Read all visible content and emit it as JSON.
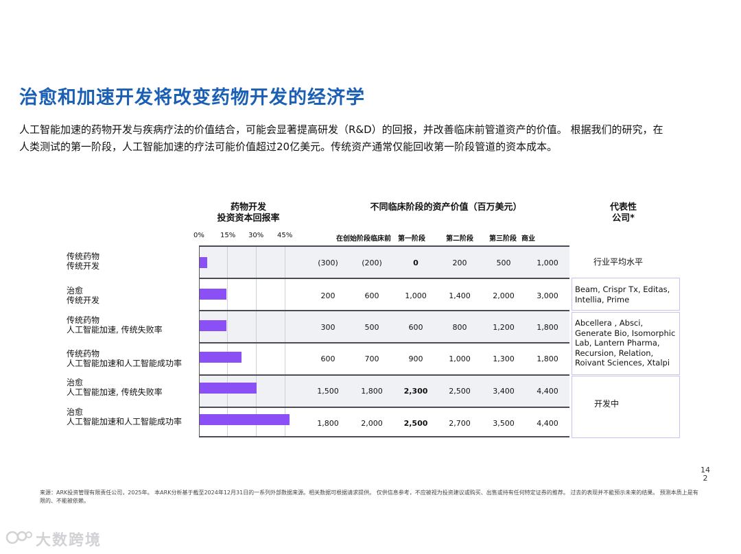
{
  "title": "治愈和加速开发将改变药物开发的经济学",
  "intro": "人工智能加速的药物开发与疾病疗法的价值结合，可能会显著提高研发（R&D）的回报，并改善临床前管道资产的价值。 根据我们的研究，在人类测试的第一阶段，人工智能加速的疗法可能价值超过20亿美元。传统资产通常仅能回收第一阶段管道的资本成本。",
  "table": {
    "col_irr_line1": "药物开发",
    "col_irr_line2": "投资资本回报率",
    "col_value": "不同临床阶段的资产价值（百万美元）",
    "col_company_line1": "代表性",
    "col_company_line2": "公司*",
    "irr_ticks": [
      "0%",
      "15%",
      "30%",
      "45%"
    ],
    "stage_headers": [
      "在创始阶段",
      "临床前",
      "第一阶段",
      "第二阶段",
      "第三阶段",
      "商业"
    ],
    "rows": [
      {
        "label1": "传统药物",
        "label2": "传统开发",
        "irr": 4,
        "values": [
          "(300)",
          "(200)",
          "0",
          "200",
          "500",
          "1,000"
        ]
      },
      {
        "label1": "治愈",
        "label2": "传统开发",
        "irr": 14,
        "values": [
          "200",
          "600",
          "1,000",
          "1,400",
          "2,000",
          "3,000"
        ]
      },
      {
        "label1": "传统药物",
        "label2": "人工智能加速, 传统失败率",
        "irr": 14,
        "values": [
          "300",
          "500",
          "600",
          "800",
          "1,200",
          "1,800"
        ]
      },
      {
        "label1": "传统药物",
        "label2": "人工智能加速和人工智能成功率",
        "irr": 22,
        "values": [
          "600",
          "700",
          "900",
          "1,000",
          "1,300",
          "1,800"
        ]
      },
      {
        "label1": "治愈",
        "label2": "人工智能加速, 传统失败率",
        "irr": 30,
        "values": [
          "1,500",
          "1,800",
          "2,300",
          "2,500",
          "3,400",
          "4,400"
        ]
      },
      {
        "label1": "治愈",
        "label2": "人工智能加速和人工智能成功率",
        "irr": 47,
        "values": [
          "1,800",
          "2,000",
          "2,500",
          "2,700",
          "3,500",
          "4,400"
        ]
      }
    ],
    "companies": {
      "industry_avg": "行业平均水平",
      "cures": "Beam, Crispr Tx, Editas, Intellia, Prime",
      "ai": "Abcellera , Absci, Generate Bio, Isomorphic Lab, Lantern Pharma, Recursion, Relation, Roivant Sciences, Xtalpi",
      "in_dev": "开发中"
    }
  },
  "footer": "来源：ARK投资管理有限责任公司，2025年。 本ARK分析基于截至2024年12月31日的一系列外部数据来源。相关数据可根据请求提供。 仅供信息参考，不应被视为投资建议或购买、出售或持有任何特定证券的推荐。 过去的表现并不能预示未来的结果。 预测本质上是有限的、不能被依赖。",
  "page_number": "142",
  "watermark": "大数跨境",
  "watermark_icon": "bubble-logo-icon",
  "colors": {
    "title": "#1a5fb4",
    "bar": "#8a50f5",
    "company_border": "#c9c3ec"
  }
}
